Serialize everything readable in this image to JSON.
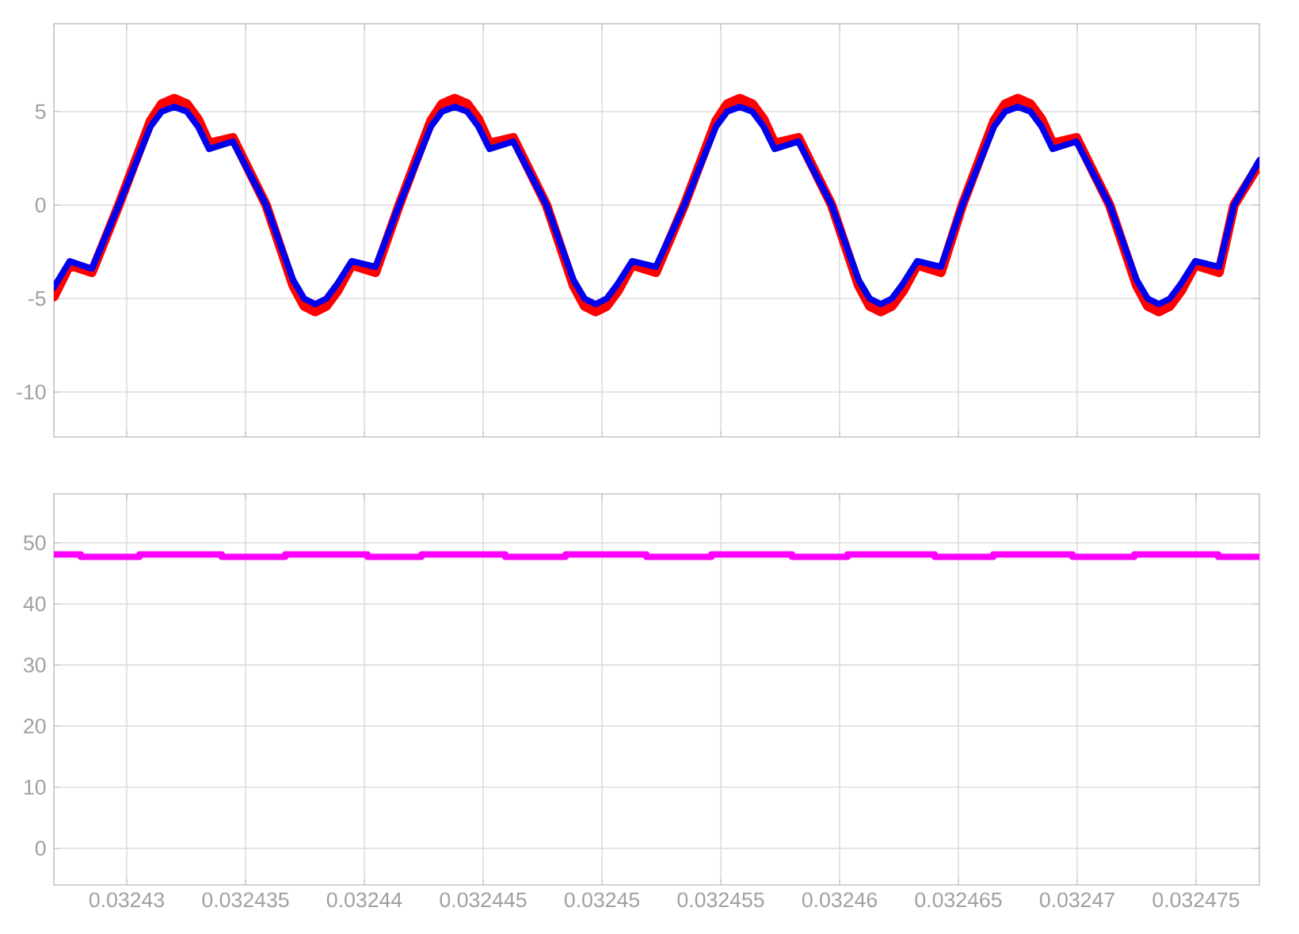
{
  "chart_data": [
    {
      "type": "line",
      "grid": true,
      "tick_labels": "y",
      "xlim": [
        0.032426933,
        0.032477667
      ],
      "xticks": [
        0.03243,
        0.032435,
        0.03244,
        0.032445,
        0.03245,
        0.032455,
        0.03246,
        0.032465,
        0.03247,
        0.032475
      ],
      "ylim": [
        -12.4,
        9.7
      ],
      "yticks": [
        -10,
        -5,
        0,
        5
      ],
      "series": [
        {
          "color": "#ff0000",
          "x": [
            0.032426933,
            0.0324276,
            0.032428533,
            0.032429667,
            0.032431,
            0.032431467,
            0.032432,
            0.032432533,
            0.032433,
            0.032433467,
            0.032434467,
            0.032435867,
            0.032437,
            0.032437467,
            0.032437933,
            0.0324384,
            0.032438867,
            0.032439467,
            0.032440467,
            0.032441467,
            0.0324428,
            0.032443267,
            0.0324438,
            0.032444333,
            0.0324448,
            0.032445267,
            0.032446267,
            0.032447667,
            0.0324488,
            0.032449267,
            0.032449733,
            0.0324502,
            0.032450667,
            0.032451267,
            0.032452267,
            0.032453467,
            0.0324548,
            0.032455267,
            0.0324558,
            0.032456333,
            0.0324568,
            0.032457267,
            0.032458267,
            0.032459667,
            0.0324608,
            0.032461267,
            0.032461733,
            0.0324622,
            0.032462667,
            0.032463267,
            0.032464267,
            0.032465167,
            0.0324665,
            0.032466967,
            0.0324675,
            0.032468033,
            0.0324685,
            0.032468967,
            0.032469967,
            0.032471367,
            0.0324725,
            0.032472967,
            0.032473433,
            0.0324739,
            0.032474367,
            0.032474967,
            0.032475967,
            0.0324766,
            0.032477667
          ],
          "values": [
            -4.9,
            -3.2,
            -3.6,
            0,
            4.5,
            5.4,
            5.7,
            5.4,
            4.6,
            3.3,
            3.6,
            0,
            -4.3,
            -5.4,
            -5.7,
            -5.4,
            -4.6,
            -3.2,
            -3.6,
            0,
            4.5,
            5.4,
            5.7,
            5.4,
            4.6,
            3.3,
            3.6,
            0,
            -4.3,
            -5.4,
            -5.7,
            -5.4,
            -4.6,
            -3.2,
            -3.6,
            0,
            4.5,
            5.4,
            5.7,
            5.4,
            4.6,
            3.3,
            3.6,
            0,
            -4.3,
            -5.4,
            -5.7,
            -5.4,
            -4.6,
            -3.2,
            -3.6,
            0,
            4.5,
            5.4,
            5.7,
            5.4,
            4.6,
            3.3,
            3.6,
            0,
            -4.3,
            -5.4,
            -5.7,
            -5.4,
            -4.6,
            -3.2,
            -3.6,
            0,
            2.2
          ]
        },
        {
          "color": "#0000ee",
          "x": [
            0.032426933,
            0.0324276,
            0.032428533,
            0.032429667,
            0.032431,
            0.032431467,
            0.032432,
            0.032432533,
            0.032433,
            0.032433467,
            0.032434467,
            0.032435867,
            0.032437,
            0.032437467,
            0.032437933,
            0.0324384,
            0.032438867,
            0.032439467,
            0.032440467,
            0.032441467,
            0.0324428,
            0.032443267,
            0.0324438,
            0.032444333,
            0.0324448,
            0.032445267,
            0.032446267,
            0.032447667,
            0.0324488,
            0.032449267,
            0.032449733,
            0.0324502,
            0.032450667,
            0.032451267,
            0.032452267,
            0.032453467,
            0.0324548,
            0.032455267,
            0.0324558,
            0.032456333,
            0.0324568,
            0.032457267,
            0.032458267,
            0.032459667,
            0.0324608,
            0.032461267,
            0.032461733,
            0.0324622,
            0.032462667,
            0.032463267,
            0.032464267,
            0.032465167,
            0.0324665,
            0.032466967,
            0.0324675,
            0.032468033,
            0.0324685,
            0.032468967,
            0.032469967,
            0.032471367,
            0.0324725,
            0.032472967,
            0.032473433,
            0.0324739,
            0.032474367,
            0.032474967,
            0.032475967,
            0.0324766,
            0.032477667
          ],
          "values": [
            -4.4,
            -3.0,
            -3.4,
            0,
            4.2,
            5.0,
            5.25,
            5.0,
            4.2,
            3.0,
            3.4,
            0,
            -4.0,
            -5.0,
            -5.3,
            -5.0,
            -4.2,
            -3.0,
            -3.3,
            0,
            4.2,
            5.0,
            5.25,
            5.0,
            4.2,
            3.0,
            3.4,
            0,
            -4.0,
            -5.0,
            -5.3,
            -5.0,
            -4.2,
            -3.0,
            -3.3,
            0,
            4.2,
            5.0,
            5.25,
            5.0,
            4.2,
            3.0,
            3.4,
            0,
            -4.0,
            -5.0,
            -5.3,
            -5.0,
            -4.2,
            -3.0,
            -3.3,
            0,
            4.2,
            5.0,
            5.25,
            5.0,
            4.2,
            3.0,
            3.4,
            0,
            -4.0,
            -5.0,
            -5.3,
            -5.0,
            -4.2,
            -3.0,
            -3.3,
            0,
            2.4
          ]
        }
      ]
    },
    {
      "type": "step",
      "grid": true,
      "xlim": [
        0.032426933,
        0.032477667
      ],
      "xticks": [
        0.03243,
        0.032435,
        0.03244,
        0.032445,
        0.03245,
        0.032455,
        0.03246,
        0.032465,
        0.03247,
        0.032475
      ],
      "ylim": [
        -6,
        58
      ],
      "yticks": [
        0,
        10,
        20,
        30,
        40,
        50
      ],
      "series": [
        {
          "color": "#ff00ff",
          "x": [
            0.032426933,
            0.032428067,
            0.032430533,
            0.032434,
            0.032436667,
            0.032440133,
            0.0324424,
            0.032445933,
            0.032448467,
            0.032451867,
            0.0324546,
            0.032458,
            0.032460333,
            0.032464,
            0.032466467,
            0.0324698,
            0.0324724,
            0.032475933,
            0.032477667
          ],
          "values": [
            48.1,
            47.7,
            48.1,
            47.7,
            48.1,
            47.7,
            48.1,
            47.7,
            48.1,
            47.7,
            48.1,
            47.7,
            48.1,
            47.7,
            48.1,
            47.7,
            48.1,
            47.7,
            47.7
          ]
        }
      ]
    }
  ]
}
